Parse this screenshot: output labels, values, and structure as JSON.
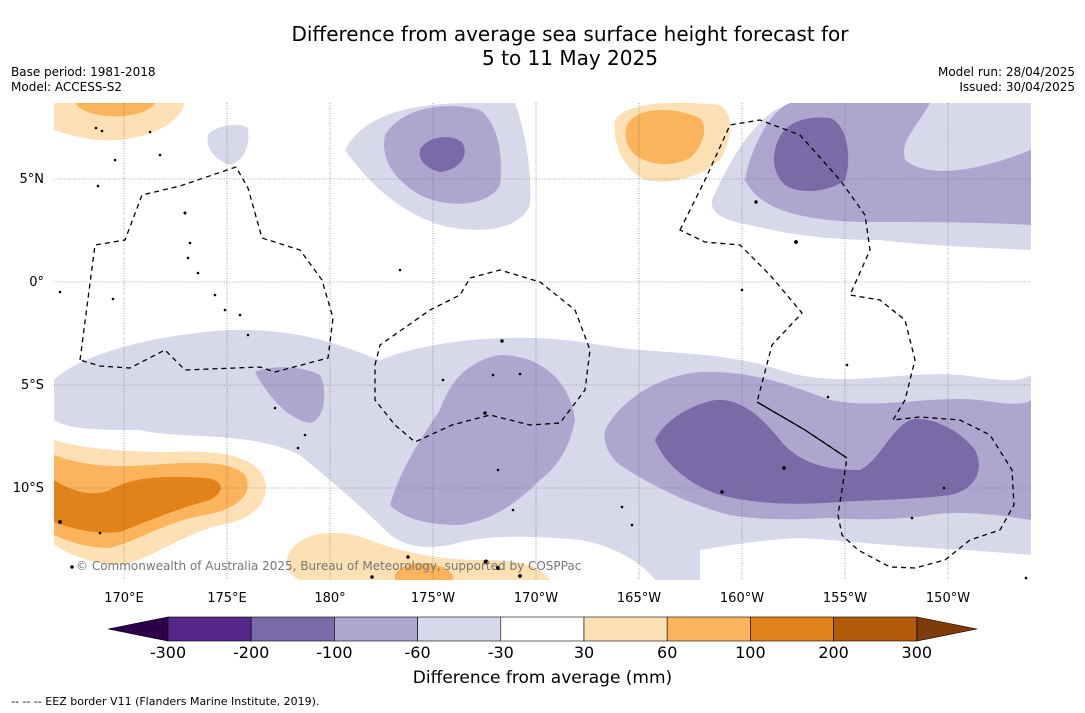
{
  "title": {
    "line1": "Difference from average sea surface height forecast for",
    "line2": "5 to 11 May 2025"
  },
  "meta": {
    "base_period": "Base period: 1981-2018",
    "model": "Model: ACCESS-S2",
    "model_run": "Model run: 28/04/2025",
    "issued": "Issued: 30/04/2025"
  },
  "map": {
    "lon_ticks": [
      "170°E",
      "175°E",
      "180°",
      "175°W",
      "170°W",
      "165°W",
      "160°W",
      "155°W",
      "150°W"
    ],
    "lat_ticks": [
      "5°N",
      "0°",
      "5°S",
      "10°S"
    ],
    "copyright": "© Commonwealth of Australia 2025, Bureau of Meteorology, supported by COSPPac"
  },
  "colorbar": {
    "ticks": [
      "-300",
      "-200",
      "-100",
      "-60",
      "-30",
      "30",
      "60",
      "100",
      "200",
      "300"
    ],
    "colors": [
      "#542788",
      "#7b6aa8",
      "#aea6cf",
      "#d7d8ea",
      "#ffffff",
      "#fde0b3",
      "#fbb45c",
      "#e2831a",
      "#b15a09"
    ],
    "low_extend_color": "#2d004b",
    "high_extend_color": "#7f3b08",
    "label": "Difference from average (mm)"
  },
  "legend_note": "--  --  -- EEZ border V11 (Flanders Marine Institute, 2019)."
}
